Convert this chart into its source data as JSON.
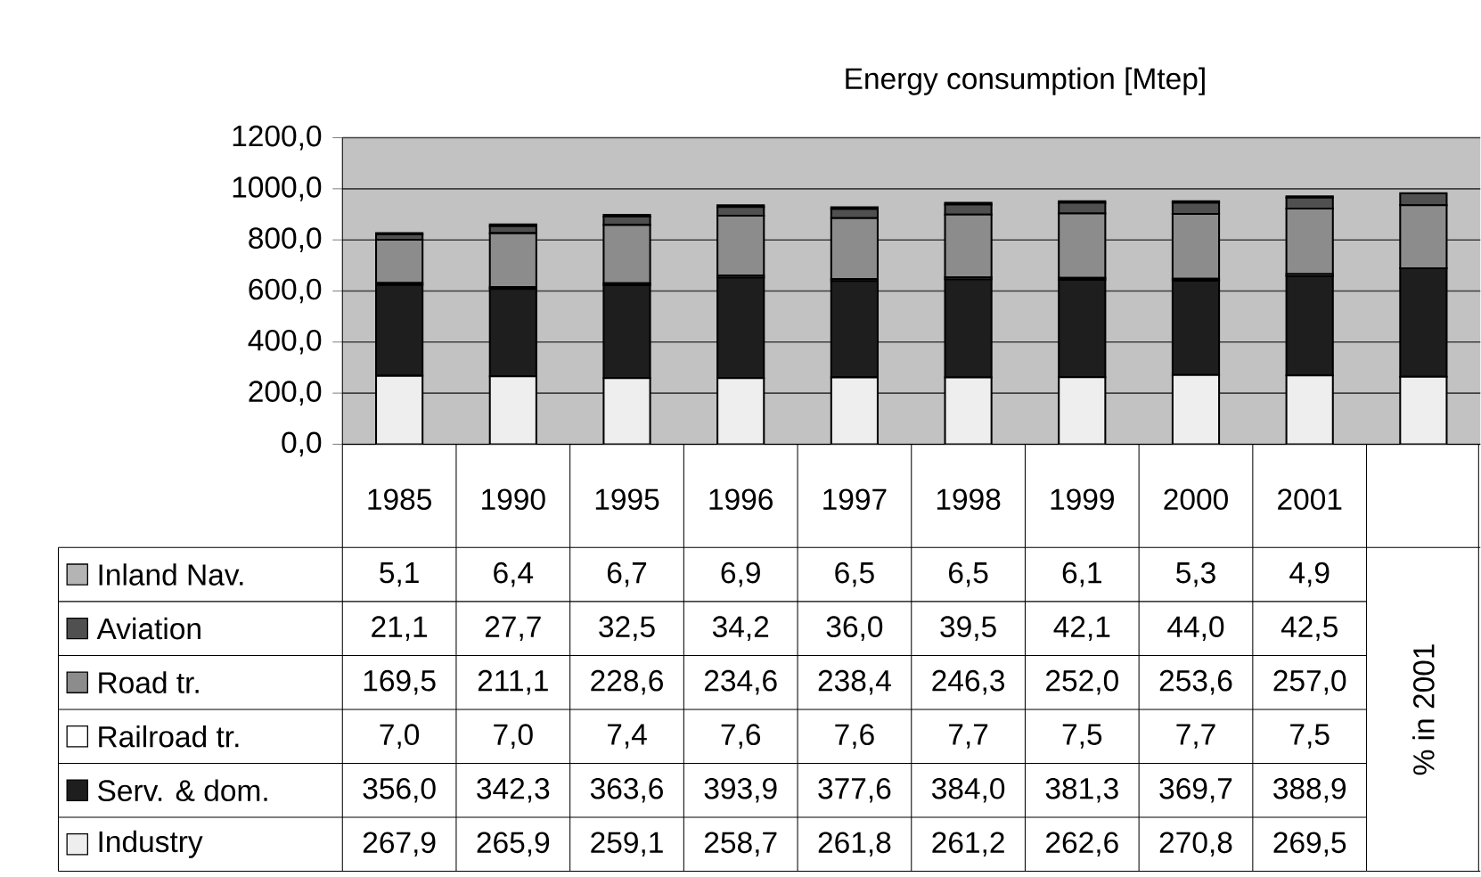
{
  "chart_data": {
    "type": "bar",
    "stacked": true,
    "title": "Energy consumption [Mtep]",
    "categories": [
      "1985",
      "1990",
      "1995",
      "1996",
      "1997",
      "1998",
      "1999",
      "2000",
      "2001",
      null
    ],
    "series": [
      {
        "name": "Industry",
        "color": "#eeeeee",
        "values": [
          267.9,
          265.9,
          259.1,
          258.7,
          261.8,
          261.2,
          262.6,
          270.8,
          269.5,
          264
        ],
        "value_labels": [
          "267,9",
          "265,9",
          "259,1",
          "258,7",
          "261,8",
          "261,2",
          "262,6",
          "270,8",
          "269,5",
          null
        ]
      },
      {
        "name": "Serv. & dom.",
        "color": "#1e1e1e",
        "values": [
          356.0,
          342.3,
          363.6,
          393.9,
          377.6,
          384.0,
          381.3,
          369.7,
          388.9,
          425
        ],
        "value_labels": [
          "356,0",
          "342,3",
          "363,6",
          "393,9",
          "377,6",
          "384,0",
          "381,3",
          "369,7",
          "388,9",
          null
        ]
      },
      {
        "name": "Railroad tr.",
        "color": "#ffffff",
        "values": [
          7.0,
          7.0,
          7.4,
          7.6,
          7.6,
          7.7,
          7.5,
          7.7,
          7.5,
          null
        ],
        "value_labels": [
          "7,0",
          "7,0",
          "7,4",
          "7,6",
          "7,6",
          "7,7",
          "7,5",
          "7,7",
          "7,5",
          null
        ]
      },
      {
        "name": "Road tr.",
        "color": "#8c8c8c",
        "values": [
          169.5,
          211.1,
          228.6,
          234.6,
          238.4,
          246.3,
          252.0,
          253.6,
          257.0,
          247
        ],
        "value_labels": [
          "169,5",
          "211,1",
          "228,6",
          "234,6",
          "238,4",
          "246,3",
          "252,0",
          "253,6",
          "257,0",
          null
        ]
      },
      {
        "name": "Aviation",
        "color": "#505050",
        "values": [
          21.1,
          27.7,
          32.5,
          34.2,
          36.0,
          39.5,
          42.1,
          44.0,
          42.5,
          47
        ],
        "value_labels": [
          "21,1",
          "27,7",
          "32,5",
          "34,2",
          "36,0",
          "39,5",
          "42,1",
          "44,0",
          "42,5",
          null
        ]
      },
      {
        "name": "Inland Nav.",
        "color": "#b4b4b4",
        "values": [
          5.1,
          6.4,
          6.7,
          6.9,
          6.5,
          6.5,
          6.1,
          5.3,
          4.9,
          null
        ],
        "value_labels": [
          "5,1",
          "6,4",
          "6,7",
          "6,9",
          "6,5",
          "6,5",
          "6,1",
          "5,3",
          "4,9",
          null
        ]
      }
    ],
    "ylim": [
      0,
      1200
    ],
    "yticks": [
      {
        "value": 0,
        "label": "0,0"
      },
      {
        "value": 200,
        "label": "200,0"
      },
      {
        "value": 400,
        "label": "400,0"
      },
      {
        "value": 600,
        "label": "600,0"
      },
      {
        "value": 800,
        "label": "800,0"
      },
      {
        "value": 1000,
        "label": "1000,0"
      },
      {
        "value": 1200,
        "label": "1200,0"
      }
    ],
    "grid": "y",
    "legend": "bottom left",
    "annotations": [
      "% in 2001"
    ]
  }
}
